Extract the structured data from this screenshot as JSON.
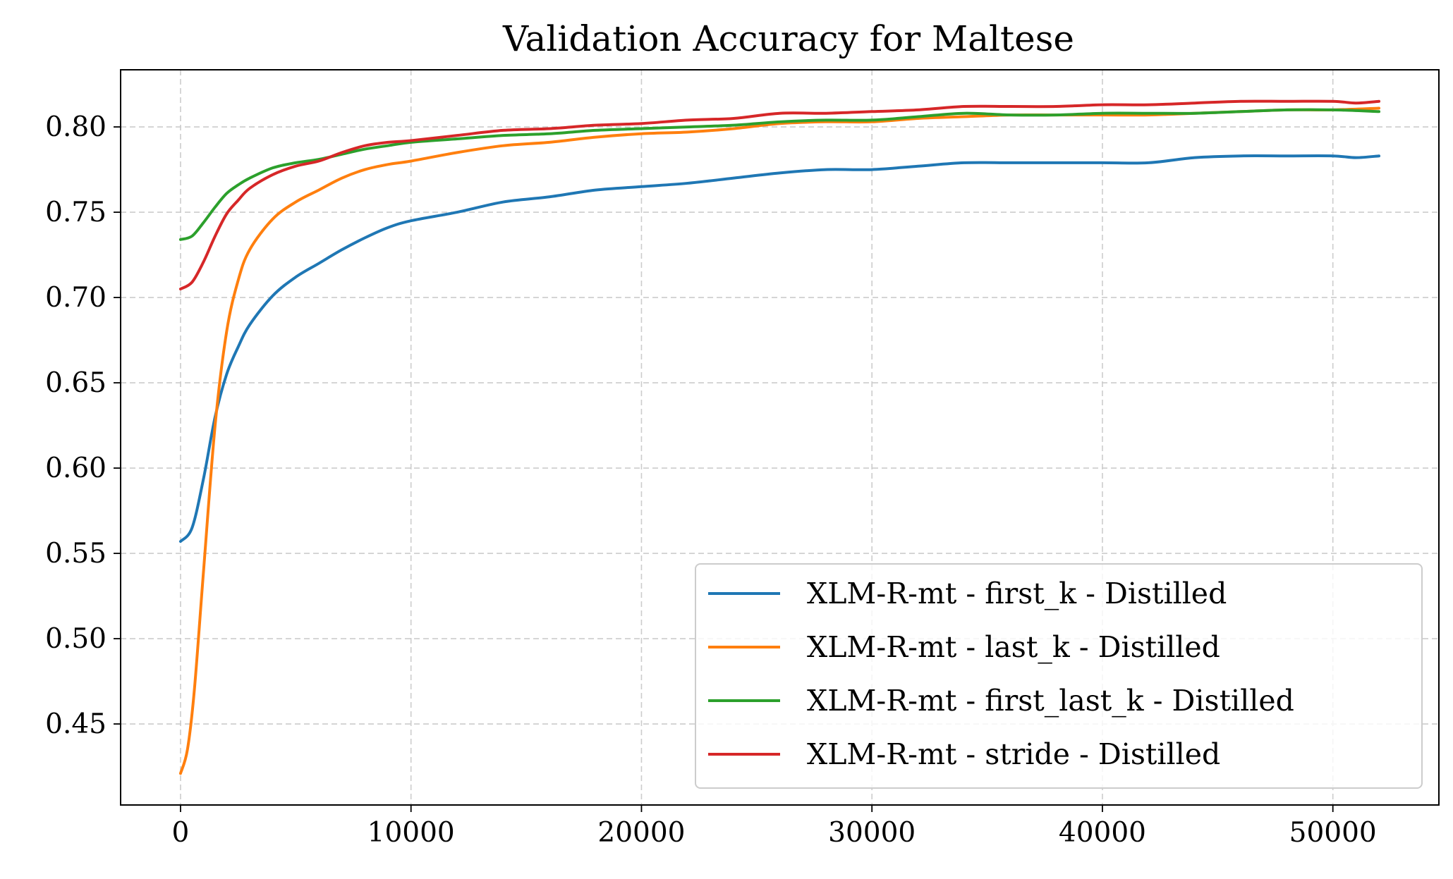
{
  "chart_data": {
    "type": "line",
    "title": "Validation Accuracy for Maltese",
    "xlabel": "",
    "ylabel": "",
    "xlim": [
      -2600,
      54600
    ],
    "ylim": [
      0.4025,
      0.8335
    ],
    "xticks": [
      0,
      10000,
      20000,
      30000,
      40000,
      50000
    ],
    "yticks": [
      0.45,
      0.5,
      0.55,
      0.6,
      0.65,
      0.7,
      0.75,
      0.8
    ],
    "xtick_labels": [
      "0",
      "10000",
      "20000",
      "30000",
      "40000",
      "50000"
    ],
    "ytick_labels": [
      "0.45",
      "0.50",
      "0.55",
      "0.60",
      "0.65",
      "0.70",
      "0.75",
      "0.80"
    ],
    "grid": true,
    "legend_position": "lower-right",
    "series": [
      {
        "name": "XLM-R-mt - first_k - Distilled",
        "color": "#1f77b4",
        "x": [
          0,
          500,
          1000,
          1500,
          2000,
          2500,
          3000,
          4000,
          5000,
          6000,
          7000,
          8000,
          9000,
          10000,
          12000,
          14000,
          16000,
          18000,
          20000,
          22000,
          24000,
          26000,
          28000,
          30000,
          32000,
          34000,
          36000,
          38000,
          40000,
          42000,
          44000,
          46000,
          48000,
          50000,
          51000,
          52000
        ],
        "y": [
          0.557,
          0.565,
          0.594,
          0.63,
          0.655,
          0.671,
          0.684,
          0.701,
          0.712,
          0.72,
          0.728,
          0.735,
          0.741,
          0.745,
          0.75,
          0.756,
          0.759,
          0.763,
          0.765,
          0.767,
          0.77,
          0.773,
          0.775,
          0.775,
          0.777,
          0.779,
          0.779,
          0.779,
          0.779,
          0.779,
          0.782,
          0.783,
          0.783,
          0.783,
          0.782,
          0.783
        ]
      },
      {
        "name": "XLM-R-mt - last_k - Distilled",
        "color": "#ff7f0e",
        "x": [
          0,
          300,
          600,
          1000,
          1500,
          2000,
          2500,
          3000,
          4000,
          5000,
          6000,
          7000,
          8000,
          9000,
          10000,
          12000,
          14000,
          16000,
          18000,
          20000,
          22000,
          24000,
          26000,
          28000,
          30000,
          32000,
          34000,
          36000,
          38000,
          40000,
          42000,
          44000,
          46000,
          48000,
          50000,
          52000
        ],
        "y": [
          0.421,
          0.435,
          0.47,
          0.54,
          0.625,
          0.68,
          0.71,
          0.728,
          0.746,
          0.756,
          0.763,
          0.77,
          0.775,
          0.778,
          0.78,
          0.785,
          0.789,
          0.791,
          0.794,
          0.796,
          0.797,
          0.799,
          0.802,
          0.803,
          0.803,
          0.805,
          0.806,
          0.807,
          0.807,
          0.807,
          0.807,
          0.808,
          0.809,
          0.81,
          0.81,
          0.811
        ]
      },
      {
        "name": "XLM-R-mt - first_last_k - Distilled",
        "color": "#2ca02c",
        "x": [
          0,
          500,
          1000,
          1500,
          2000,
          2500,
          3000,
          4000,
          5000,
          6000,
          7000,
          8000,
          9000,
          10000,
          12000,
          14000,
          16000,
          18000,
          20000,
          22000,
          24000,
          26000,
          28000,
          30000,
          32000,
          34000,
          36000,
          38000,
          40000,
          42000,
          44000,
          46000,
          48000,
          50000,
          52000
        ],
        "y": [
          0.734,
          0.736,
          0.744,
          0.753,
          0.761,
          0.766,
          0.77,
          0.776,
          0.779,
          0.781,
          0.784,
          0.787,
          0.789,
          0.791,
          0.793,
          0.795,
          0.796,
          0.798,
          0.799,
          0.8,
          0.801,
          0.803,
          0.804,
          0.804,
          0.806,
          0.808,
          0.807,
          0.807,
          0.808,
          0.808,
          0.808,
          0.809,
          0.81,
          0.81,
          0.809
        ]
      },
      {
        "name": "XLM-R-mt - stride - Distilled",
        "color": "#d62728",
        "x": [
          0,
          500,
          1000,
          1500,
          2000,
          2500,
          3000,
          4000,
          5000,
          6000,
          7000,
          8000,
          9000,
          10000,
          12000,
          14000,
          16000,
          18000,
          20000,
          22000,
          24000,
          26000,
          28000,
          30000,
          32000,
          34000,
          36000,
          38000,
          40000,
          42000,
          44000,
          46000,
          48000,
          50000,
          51000,
          52000
        ],
        "y": [
          0.705,
          0.709,
          0.721,
          0.736,
          0.749,
          0.757,
          0.764,
          0.772,
          0.777,
          0.78,
          0.785,
          0.789,
          0.791,
          0.792,
          0.795,
          0.798,
          0.799,
          0.801,
          0.802,
          0.804,
          0.805,
          0.808,
          0.808,
          0.809,
          0.81,
          0.812,
          0.812,
          0.812,
          0.813,
          0.813,
          0.814,
          0.815,
          0.815,
          0.815,
          0.814,
          0.815
        ]
      }
    ]
  }
}
